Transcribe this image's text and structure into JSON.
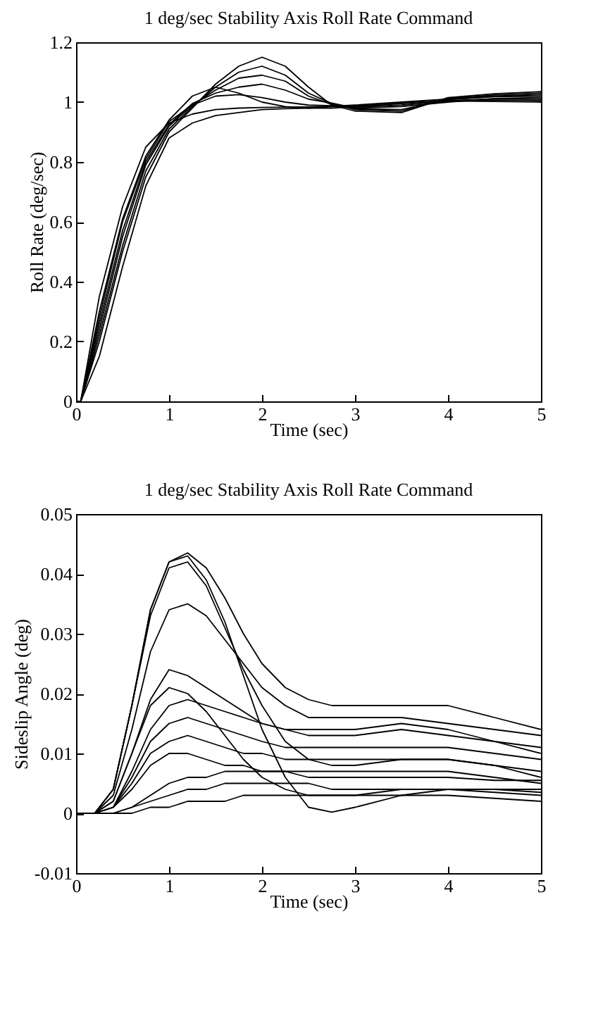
{
  "chart_data": [
    {
      "type": "line",
      "title": "1 deg/sec Stability Axis Roll Rate Command",
      "xlabel": "Time  (sec)",
      "ylabel": "Roll Rate  (deg/sec)",
      "xlim": [
        0,
        5
      ],
      "ylim": [
        0,
        1.2
      ],
      "xticks": [
        0,
        1,
        2,
        3,
        4,
        5
      ],
      "yticks": [
        0,
        0.2,
        0.4,
        0.6,
        0.8,
        1,
        1.2
      ],
      "grid": false,
      "legend": false,
      "marker": "none",
      "line_style": "solid",
      "x": [
        0,
        0.05,
        0.25,
        0.5,
        0.75,
        1,
        1.25,
        1.5,
        1.75,
        2,
        2.25,
        2.5,
        2.75,
        3,
        3.5,
        4,
        4.5,
        5
      ],
      "series": [
        {
          "color": "#000000",
          "values": [
            0,
            0,
            0.35,
            0.65,
            0.85,
            0.93,
            0.96,
            0.975,
            0.98,
            0.982,
            0.983,
            0.984,
            0.986,
            0.99,
            1.0,
            1.01,
            1.02,
            1.025
          ]
        },
        {
          "color": "#000000",
          "values": [
            0,
            0,
            0.3,
            0.61,
            0.82,
            0.94,
            1.02,
            1.05,
            1.03,
            1.0,
            0.985,
            0.98,
            0.98,
            0.985,
            0.995,
            1.005,
            1.01,
            1.01
          ]
        },
        {
          "color": "#000000",
          "values": [
            0,
            0,
            0.2,
            0.5,
            0.75,
            0.9,
            0.98,
            1.06,
            1.12,
            1.15,
            1.12,
            1.05,
            0.99,
            0.97,
            0.965,
            1.015,
            1.028,
            1.035
          ]
        },
        {
          "color": "#000000",
          "values": [
            0,
            0,
            0.22,
            0.52,
            0.77,
            0.91,
            0.985,
            1.05,
            1.1,
            1.12,
            1.09,
            1.03,
            0.995,
            0.975,
            0.97,
            1.012,
            1.024,
            1.03
          ]
        },
        {
          "color": "#000000",
          "values": [
            0,
            0,
            0.24,
            0.55,
            0.79,
            0.92,
            0.99,
            1.04,
            1.08,
            1.09,
            1.07,
            1.02,
            0.992,
            0.978,
            0.975,
            1.008,
            1.018,
            1.02
          ]
        },
        {
          "color": "#000000",
          "values": [
            0,
            0,
            0.26,
            0.57,
            0.8,
            0.925,
            0.995,
            1.03,
            1.05,
            1.06,
            1.04,
            1.01,
            0.997,
            0.98,
            0.985,
            1.0,
            1.012,
            1.015
          ]
        },
        {
          "color": "#000000",
          "values": [
            0,
            0,
            0.15,
            0.45,
            0.72,
            0.88,
            0.93,
            0.955,
            0.965,
            0.975,
            0.978,
            0.98,
            0.985,
            0.988,
            0.998,
            1.004,
            1.002,
            1.0
          ]
        },
        {
          "color": "#000000",
          "values": [
            0,
            0,
            0.28,
            0.6,
            0.81,
            0.935,
            0.99,
            1.02,
            1.025,
            1.015,
            1.0,
            0.99,
            0.988,
            0.983,
            0.99,
            1.003,
            1.006,
            1.005
          ]
        }
      ]
    },
    {
      "type": "line",
      "title": "1 deg/sec Stability Axis Roll Rate Command",
      "xlabel": "Time  (sec)",
      "ylabel": "Sideslip Angle  (deg)",
      "xlim": [
        0,
        5
      ],
      "ylim": [
        -0.01,
        0.05
      ],
      "xticks": [
        0,
        1,
        2,
        3,
        4,
        5
      ],
      "yticks": [
        -0.01,
        {
          "value": 0,
          "label": "0"
        },
        0.01,
        0.02,
        0.03,
        0.04,
        0.05
      ],
      "grid": false,
      "legend": false,
      "marker": "none",
      "line_style": "solid",
      "x": [
        0,
        0.2,
        0.4,
        0.6,
        0.8,
        1,
        1.2,
        1.4,
        1.6,
        1.8,
        2,
        2.25,
        2.5,
        2.75,
        3,
        3.5,
        4,
        4.5,
        5
      ],
      "series": [
        {
          "color": "#000000",
          "values": [
            0,
            0,
            0.004,
            0.018,
            0.034,
            0.042,
            0.0435,
            0.041,
            0.036,
            0.03,
            0.025,
            0.021,
            0.019,
            0.018,
            0.018,
            0.018,
            0.018,
            0.016,
            0.014
          ]
        },
        {
          "color": "#000000",
          "values": [
            0,
            0,
            0.004,
            0.018,
            0.034,
            0.042,
            0.043,
            0.039,
            0.032,
            0.023,
            0.014,
            0.006,
            0.001,
            0.0002,
            0.001,
            0.003,
            0.004,
            0.004,
            0.004
          ]
        },
        {
          "color": "#000000",
          "values": [
            0,
            0,
            0.004,
            0.018,
            0.033,
            0.041,
            0.042,
            0.038,
            0.031,
            0.024,
            0.018,
            0.012,
            0.009,
            0.008,
            0.008,
            0.009,
            0.009,
            0.008,
            0.006
          ]
        },
        {
          "color": "#000000",
          "values": [
            0,
            0,
            0.003,
            0.014,
            0.027,
            0.034,
            0.035,
            0.033,
            0.029,
            0.025,
            0.021,
            0.018,
            0.016,
            0.016,
            0.016,
            0.016,
            0.015,
            0.014,
            0.013
          ]
        },
        {
          "color": "#000000",
          "values": [
            0,
            0,
            0.002,
            0.01,
            0.019,
            0.024,
            0.023,
            0.021,
            0.019,
            0.017,
            0.015,
            0.014,
            0.014,
            0.014,
            0.014,
            0.015,
            0.014,
            0.012,
            0.011
          ]
        },
        {
          "color": "#000000",
          "values": [
            0,
            0,
            0.002,
            0.01,
            0.018,
            0.021,
            0.02,
            0.017,
            0.013,
            0.009,
            0.006,
            0.004,
            0.003,
            0.003,
            0.003,
            0.004,
            0.004,
            0.004,
            0.0035
          ]
        },
        {
          "color": "#000000",
          "values": [
            0,
            0,
            0.001,
            0.007,
            0.014,
            0.018,
            0.019,
            0.018,
            0.017,
            0.016,
            0.015,
            0.014,
            0.013,
            0.013,
            0.013,
            0.014,
            0.013,
            0.012,
            0.01
          ]
        },
        {
          "color": "#000000",
          "values": [
            0,
            0,
            0.001,
            0.006,
            0.012,
            0.015,
            0.016,
            0.015,
            0.014,
            0.013,
            0.012,
            0.011,
            0.011,
            0.011,
            0.011,
            0.011,
            0.011,
            0.01,
            0.009
          ]
        },
        {
          "color": "#000000",
          "values": [
            0,
            0,
            0.001,
            0.005,
            0.01,
            0.012,
            0.013,
            0.012,
            0.011,
            0.01,
            0.01,
            0.009,
            0.009,
            0.009,
            0.009,
            0.009,
            0.009,
            0.008,
            0.007
          ]
        },
        {
          "color": "#000000",
          "values": [
            0,
            0,
            0.001,
            0.004,
            0.008,
            0.01,
            0.01,
            0.009,
            0.008,
            0.008,
            0.007,
            0.007,
            0.007,
            0.007,
            0.007,
            0.007,
            0.007,
            0.006,
            0.005
          ]
        },
        {
          "color": "#000000",
          "values": [
            0,
            0,
            0,
            0.001,
            0.003,
            0.005,
            0.006,
            0.006,
            0.007,
            0.007,
            0.007,
            0.007,
            0.006,
            0.006,
            0.006,
            0.006,
            0.006,
            0.0055,
            0.0055
          ]
        },
        {
          "color": "#000000",
          "values": [
            0,
            0,
            0,
            0.001,
            0.002,
            0.003,
            0.004,
            0.004,
            0.005,
            0.005,
            0.005,
            0.005,
            0.005,
            0.004,
            0.004,
            0.004,
            0.004,
            0.0035,
            0.003
          ]
        },
        {
          "color": "#000000",
          "values": [
            0,
            0,
            0,
            0,
            0.001,
            0.001,
            0.002,
            0.002,
            0.002,
            0.003,
            0.003,
            0.003,
            0.003,
            0.003,
            0.003,
            0.003,
            0.003,
            0.0025,
            0.002
          ]
        }
      ]
    }
  ]
}
